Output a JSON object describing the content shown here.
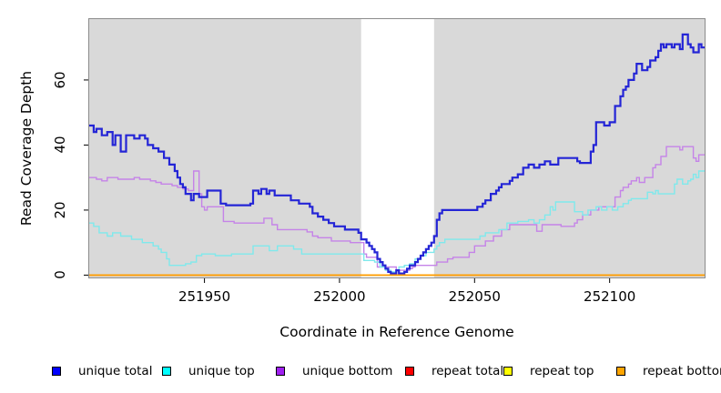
{
  "chart_data": {
    "type": "line",
    "subtype": "step-coverage",
    "title": "",
    "xlabel": "Coordinate in Reference Genome",
    "ylabel": "Read Coverage Depth",
    "x_domain": [
      251907,
      252135.5
    ],
    "y_domain": [
      -1,
      79
    ],
    "grid": "off",
    "legend_position": "bottom",
    "panel_bg": "#d9d9d9",
    "panel_border": "#8c8c8c",
    "tick_color": "#000000",
    "gap_region": {
      "from": 252008,
      "to": 252035,
      "color": "#ffffff"
    },
    "x_ticks": [
      {
        "value": 251950,
        "label": "251950"
      },
      {
        "value": 252000,
        "label": "252000"
      },
      {
        "value": 252050,
        "label": "252050"
      },
      {
        "value": 252100,
        "label": "252100"
      }
    ],
    "y_ticks": [
      {
        "value": 0,
        "label": "0"
      },
      {
        "value": 20,
        "label": "20"
      },
      {
        "value": 40,
        "label": "40"
      },
      {
        "value": 60,
        "label": "60"
      }
    ],
    "series": [
      {
        "name": "unique total",
        "color": "#2425d6",
        "legend_color": "#0000ff",
        "width": 2.2,
        "points": [
          [
            251907,
            46
          ],
          [
            251909,
            44
          ],
          [
            251910,
            45
          ],
          [
            251912,
            43
          ],
          [
            251914,
            44
          ],
          [
            251916,
            40
          ],
          [
            251917,
            43
          ],
          [
            251919,
            38
          ],
          [
            251921,
            43
          ],
          [
            251924,
            42
          ],
          [
            251926,
            43
          ],
          [
            251928,
            42
          ],
          [
            251929,
            40
          ],
          [
            251931,
            39
          ],
          [
            251933,
            38
          ],
          [
            251935,
            36
          ],
          [
            251937,
            34
          ],
          [
            251939,
            32
          ],
          [
            251940,
            30
          ],
          [
            251941,
            28
          ],
          [
            251942,
            27
          ],
          [
            251943,
            25
          ],
          [
            251945,
            23
          ],
          [
            251946,
            25
          ],
          [
            251948,
            24
          ],
          [
            251951,
            26
          ],
          [
            251956,
            22
          ],
          [
            251958,
            21.5
          ],
          [
            251967,
            22
          ],
          [
            251968,
            26
          ],
          [
            251970,
            25
          ],
          [
            251971,
            26.5
          ],
          [
            251973,
            25
          ],
          [
            251974,
            26
          ],
          [
            251976,
            24.5
          ],
          [
            251982,
            23
          ],
          [
            251985,
            22
          ],
          [
            251989,
            21
          ],
          [
            251990,
            19
          ],
          [
            251992,
            18
          ],
          [
            251994,
            17
          ],
          [
            251996,
            16
          ],
          [
            251998,
            15
          ],
          [
            252002,
            14
          ],
          [
            252007,
            13
          ],
          [
            252008,
            11
          ],
          [
            252010,
            10
          ],
          [
            252011,
            9
          ],
          [
            252012,
            8
          ],
          [
            252013,
            7
          ],
          [
            252014,
            5
          ],
          [
            252015,
            4
          ],
          [
            252016,
            3
          ],
          [
            252017,
            2
          ],
          [
            252018,
            1
          ],
          [
            252019,
            0.5
          ],
          [
            252021,
            1.5
          ],
          [
            252022,
            0.5
          ],
          [
            252024,
            1
          ],
          [
            252025,
            2
          ],
          [
            252026,
            3
          ],
          [
            252028,
            4
          ],
          [
            252029,
            5
          ],
          [
            252030,
            6
          ],
          [
            252031,
            7
          ],
          [
            252032,
            8
          ],
          [
            252033,
            9
          ],
          [
            252034,
            10
          ],
          [
            252035,
            12
          ],
          [
            252036,
            17
          ],
          [
            252037,
            19
          ],
          [
            252038,
            20
          ],
          [
            252051,
            21
          ],
          [
            252053,
            22
          ],
          [
            252054,
            23
          ],
          [
            252056,
            25
          ],
          [
            252058,
            26
          ],
          [
            252059,
            27
          ],
          [
            252060,
            28
          ],
          [
            252063,
            29
          ],
          [
            252064,
            30
          ],
          [
            252066,
            31
          ],
          [
            252068,
            33
          ],
          [
            252070,
            34
          ],
          [
            252072,
            33
          ],
          [
            252074,
            34
          ],
          [
            252076,
            35
          ],
          [
            252078,
            34
          ],
          [
            252081,
            36
          ],
          [
            252088,
            35
          ],
          [
            252089,
            34.5
          ],
          [
            252093,
            38
          ],
          [
            252094,
            40
          ],
          [
            252095,
            47
          ],
          [
            252098,
            46
          ],
          [
            252100,
            47
          ],
          [
            252102,
            52
          ],
          [
            252104,
            55
          ],
          [
            252105,
            57
          ],
          [
            252106,
            58
          ],
          [
            252107,
            60
          ],
          [
            252109,
            62
          ],
          [
            252110,
            65
          ],
          [
            252112,
            63
          ],
          [
            252114,
            64
          ],
          [
            252115,
            66
          ],
          [
            252117,
            67
          ],
          [
            252118,
            69
          ],
          [
            252119,
            71
          ],
          [
            252120,
            70
          ],
          [
            252121,
            71
          ],
          [
            252123,
            70
          ],
          [
            252124,
            71
          ],
          [
            252126,
            69.5
          ],
          [
            252127,
            74
          ],
          [
            252129,
            71
          ],
          [
            252130,
            70
          ],
          [
            252131,
            68.5
          ],
          [
            252133,
            71
          ],
          [
            252134,
            70
          ]
        ]
      },
      {
        "name": "unique top",
        "color": "#7fe9ec",
        "legend_color": "#00ffff",
        "width": 1.4,
        "points": [
          [
            251907,
            16
          ],
          [
            251909,
            15
          ],
          [
            251911,
            13
          ],
          [
            251914,
            12
          ],
          [
            251916,
            13
          ],
          [
            251919,
            12
          ],
          [
            251923,
            11
          ],
          [
            251927,
            10
          ],
          [
            251931,
            9
          ],
          [
            251933,
            8
          ],
          [
            251934,
            7
          ],
          [
            251936,
            5
          ],
          [
            251937,
            3
          ],
          [
            251943,
            3.5
          ],
          [
            251945,
            4
          ],
          [
            251947,
            6
          ],
          [
            251949,
            6.5
          ],
          [
            251954,
            6
          ],
          [
            251960,
            6.5
          ],
          [
            251968,
            9
          ],
          [
            251974,
            7.5
          ],
          [
            251977,
            9
          ],
          [
            251983,
            8
          ],
          [
            251986,
            6.5
          ],
          [
            252009,
            4.5
          ],
          [
            252013,
            4
          ],
          [
            252015,
            2.5
          ],
          [
            252017,
            1.5
          ],
          [
            252019,
            1
          ],
          [
            252021,
            1.5
          ],
          [
            252022,
            2.5
          ],
          [
            252024,
            3
          ],
          [
            252026,
            3.5
          ],
          [
            252028,
            5
          ],
          [
            252030,
            6
          ],
          [
            252032,
            7
          ],
          [
            252035,
            8
          ],
          [
            252036,
            9
          ],
          [
            252037,
            10
          ],
          [
            252039,
            11
          ],
          [
            252052,
            12
          ],
          [
            252054,
            13
          ],
          [
            252059,
            14
          ],
          [
            252062,
            16
          ],
          [
            252066,
            16.5
          ],
          [
            252070,
            17
          ],
          [
            252072,
            16
          ],
          [
            252074,
            17
          ],
          [
            252076,
            18.5
          ],
          [
            252078,
            21
          ],
          [
            252079,
            20
          ],
          [
            252080,
            22.5
          ],
          [
            252087,
            19.5
          ],
          [
            252090,
            18.5
          ],
          [
            252092,
            20
          ],
          [
            252095,
            21
          ],
          [
            252097,
            20
          ],
          [
            252099,
            21
          ],
          [
            252101,
            20
          ],
          [
            252103,
            21
          ],
          [
            252105,
            22
          ],
          [
            252107,
            23
          ],
          [
            252108,
            23.5
          ],
          [
            252114,
            25.5
          ],
          [
            252116,
            25
          ],
          [
            252117,
            26
          ],
          [
            252118,
            25
          ],
          [
            252124,
            28
          ],
          [
            252125,
            29.5
          ],
          [
            252127,
            28
          ],
          [
            252129,
            29
          ],
          [
            252130,
            29.5
          ],
          [
            252131,
            31
          ],
          [
            252132,
            30
          ],
          [
            252133,
            32
          ]
        ]
      },
      {
        "name": "unique bottom",
        "color": "#c583e8",
        "legend_color": "#a020f0",
        "width": 1.4,
        "points": [
          [
            251907,
            30
          ],
          [
            251910,
            29.5
          ],
          [
            251912,
            29
          ],
          [
            251914,
            30
          ],
          [
            251918,
            29.5
          ],
          [
            251924,
            30
          ],
          [
            251926,
            29.5
          ],
          [
            251930,
            29
          ],
          [
            251932,
            28.5
          ],
          [
            251934,
            28
          ],
          [
            251938,
            27.5
          ],
          [
            251940,
            27
          ],
          [
            251942,
            26.5
          ],
          [
            251944,
            26
          ],
          [
            251946,
            32
          ],
          [
            251948,
            25
          ],
          [
            251949,
            21
          ],
          [
            251950,
            20
          ],
          [
            251951,
            21
          ],
          [
            251957,
            16.5
          ],
          [
            251961,
            16
          ],
          [
            251972,
            17.5
          ],
          [
            251975,
            15.5
          ],
          [
            251977,
            14
          ],
          [
            251988,
            13.3
          ],
          [
            251990,
            12
          ],
          [
            251992,
            11.5
          ],
          [
            251997,
            10.5
          ],
          [
            252004,
            10
          ],
          [
            252009,
            6.5
          ],
          [
            252010,
            5.5
          ],
          [
            252014,
            2.5
          ],
          [
            252021,
            1.5
          ],
          [
            252026,
            2
          ],
          [
            252027,
            2.5
          ],
          [
            252028,
            3
          ],
          [
            252036,
            4
          ],
          [
            252040,
            5
          ],
          [
            252042,
            5.5
          ],
          [
            252048,
            7
          ],
          [
            252050,
            9
          ],
          [
            252054,
            10.5
          ],
          [
            252057,
            12
          ],
          [
            252060,
            14
          ],
          [
            252063,
            15.5
          ],
          [
            252073,
            13.5
          ],
          [
            252075,
            15.5
          ],
          [
            252082,
            15
          ],
          [
            252087,
            16
          ],
          [
            252088,
            17
          ],
          [
            252090,
            18.5
          ],
          [
            252093,
            20
          ],
          [
            252096,
            21
          ],
          [
            252102,
            24
          ],
          [
            252104,
            26
          ],
          [
            252105,
            27
          ],
          [
            252107,
            28
          ],
          [
            252108,
            29
          ],
          [
            252110,
            30
          ],
          [
            252111,
            28.5
          ],
          [
            252113,
            30
          ],
          [
            252116,
            33
          ],
          [
            252117,
            34
          ],
          [
            252119,
            36.5
          ],
          [
            252121,
            39.5
          ],
          [
            252126,
            38.5
          ],
          [
            252127,
            39.5
          ],
          [
            252131,
            36
          ],
          [
            252132,
            35
          ],
          [
            252133,
            37
          ]
        ]
      },
      {
        "name": "repeat total",
        "color": "#ff0000",
        "legend_color": "#ff0000",
        "width": 1.4,
        "points": [
          [
            251907,
            0
          ]
        ]
      },
      {
        "name": "repeat top",
        "color": "#ffff00",
        "legend_color": "#ffff00",
        "width": 1.4,
        "points": [
          [
            251907,
            0
          ]
        ]
      },
      {
        "name": "repeat bottom",
        "color": "#ff9c00",
        "legend_color": "#ffa500",
        "width": 1.6,
        "points": [
          [
            251907,
            0
          ]
        ]
      }
    ]
  },
  "legend": {
    "items": [
      {
        "label": "unique total"
      },
      {
        "label": "unique top"
      },
      {
        "label": "unique bottom"
      },
      {
        "label": "repeat total"
      },
      {
        "label": "repeat top"
      },
      {
        "label": "repeat bottom"
      }
    ]
  }
}
